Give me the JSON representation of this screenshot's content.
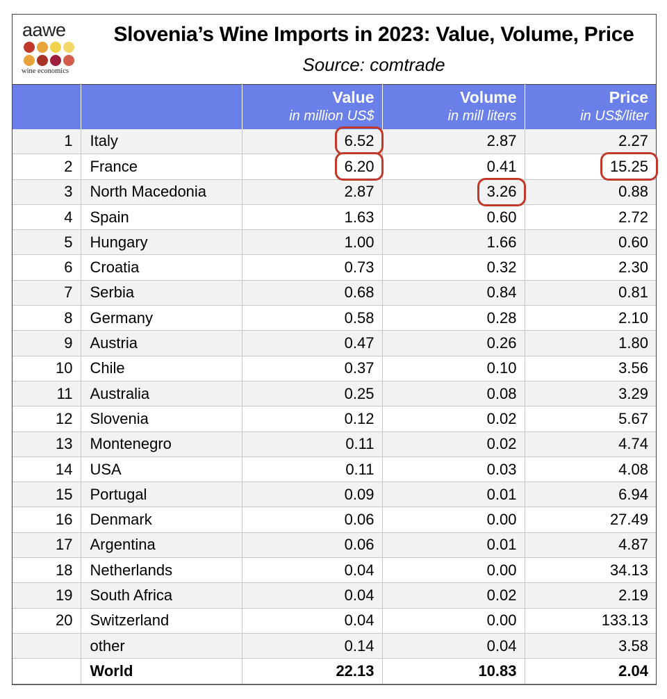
{
  "logo": {
    "text": "aawe",
    "subtext": "wine economics",
    "dot_colors": [
      "#c0392b",
      "#e8a33b",
      "#f2d24a",
      "#f3d86a",
      "#e8a33b",
      "#a93226",
      "#9e1f3b",
      "#d35d4a"
    ]
  },
  "title": "Slovenia’s Wine Imports in 2023: Value, Volume, Price",
  "subtitle": "Source: comtrade",
  "header": {
    "value": "Value",
    "value_unit": "in million US$",
    "volume": "Volume",
    "volume_unit": "in mill liters",
    "price": "Price",
    "price_unit": "in US$/liter"
  },
  "colors": {
    "header_bg": "#6a7fe8",
    "highlight": "#c0392b"
  },
  "rows": [
    {
      "rank": "1",
      "country": "Italy",
      "value": "6.52",
      "volume": "2.87",
      "price": "2.27"
    },
    {
      "rank": "2",
      "country": "France",
      "value": "6.20",
      "volume": "0.41",
      "price": "15.25"
    },
    {
      "rank": "3",
      "country": "North Macedonia",
      "value": "2.87",
      "volume": "3.26",
      "price": "0.88"
    },
    {
      "rank": "4",
      "country": "Spain",
      "value": "1.63",
      "volume": "0.60",
      "price": "2.72"
    },
    {
      "rank": "5",
      "country": "Hungary",
      "value": "1.00",
      "volume": "1.66",
      "price": "0.60"
    },
    {
      "rank": "6",
      "country": "Croatia",
      "value": "0.73",
      "volume": "0.32",
      "price": "2.30"
    },
    {
      "rank": "7",
      "country": "Serbia",
      "value": "0.68",
      "volume": "0.84",
      "price": "0.81"
    },
    {
      "rank": "8",
      "country": "Germany",
      "value": "0.58",
      "volume": "0.28",
      "price": "2.10"
    },
    {
      "rank": "9",
      "country": "Austria",
      "value": "0.47",
      "volume": "0.26",
      "price": "1.80"
    },
    {
      "rank": "10",
      "country": "Chile",
      "value": "0.37",
      "volume": "0.10",
      "price": "3.56"
    },
    {
      "rank": "11",
      "country": "Australia",
      "value": "0.25",
      "volume": "0.08",
      "price": "3.29"
    },
    {
      "rank": "12",
      "country": "Slovenia",
      "value": "0.12",
      "volume": "0.02",
      "price": "5.67"
    },
    {
      "rank": "13",
      "country": "Montenegro",
      "value": "0.11",
      "volume": "0.02",
      "price": "4.74"
    },
    {
      "rank": "14",
      "country": "USA",
      "value": "0.11",
      "volume": "0.03",
      "price": "4.08"
    },
    {
      "rank": "15",
      "country": "Portugal",
      "value": "0.09",
      "volume": "0.01",
      "price": "6.94"
    },
    {
      "rank": "16",
      "country": "Denmark",
      "value": "0.06",
      "volume": "0.00",
      "price": "27.49"
    },
    {
      "rank": "17",
      "country": "Argentina",
      "value": "0.06",
      "volume": "0.01",
      "price": "4.87"
    },
    {
      "rank": "18",
      "country": "Netherlands",
      "value": "0.04",
      "volume": "0.00",
      "price": "34.13"
    },
    {
      "rank": "19",
      "country": "South Africa",
      "value": "0.04",
      "volume": "0.02",
      "price": "2.19"
    },
    {
      "rank": "20",
      "country": "Switzerland",
      "value": "0.04",
      "volume": "0.00",
      "price": "133.13"
    },
    {
      "rank": "",
      "country": "other",
      "value": "0.14",
      "volume": "0.04",
      "price": "3.58"
    }
  ],
  "total": {
    "rank": "",
    "country": "World",
    "value": "22.13",
    "volume": "10.83",
    "price": "2.04"
  }
}
